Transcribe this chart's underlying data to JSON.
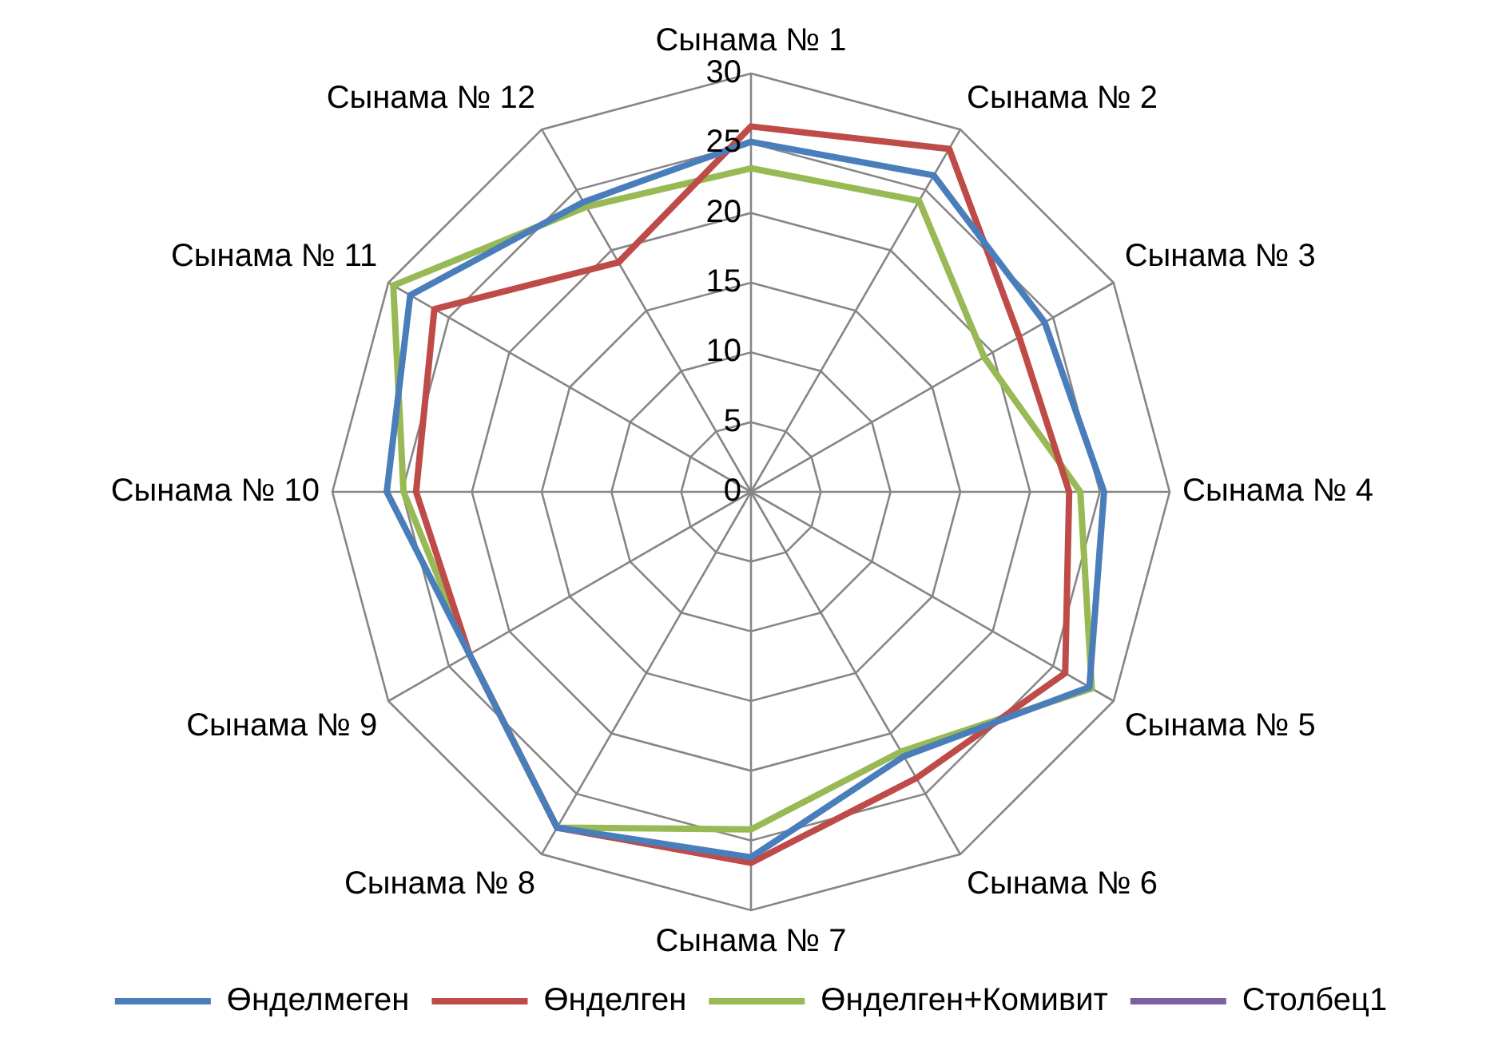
{
  "chart_data": {
    "type": "radar",
    "categories": [
      "Сынама № 1",
      "Сынама № 2",
      "Сынама № 3",
      "Сынама № 4",
      "Сынама № 5",
      "Сынама № 6",
      "Сынама № 7",
      "Сынама № 8",
      "Сынама № 9",
      "Сынама № 10",
      "Сынама № 11",
      "Сынама № 12"
    ],
    "series": [
      {
        "name": "Өнделмеген",
        "color": "#4a7ebb",
        "values": [
          25.1,
          26.2,
          24.3,
          25.3,
          28.0,
          21.9,
          26.2,
          27.8,
          23.3,
          26.1,
          28.2,
          24.0
        ]
      },
      {
        "name": "Өнделген",
        "color": "#be4b48",
        "values": [
          26.2,
          28.4,
          22.2,
          22.8,
          26.0,
          23.7,
          26.6,
          27.8,
          23.3,
          24.0,
          26.2,
          19.0
        ]
      },
      {
        "name": "Өнделген+Комивит",
        "color": "#98b954",
        "values": [
          23.2,
          24.1,
          19.3,
          23.6,
          28.2,
          21.5,
          24.2,
          27.8,
          23.3,
          24.9,
          29.6,
          23.6
        ]
      },
      {
        "name": "Столбец1",
        "color": "#7d60a0",
        "values": [
          null,
          null,
          null,
          null,
          null,
          null,
          null,
          null,
          null,
          null,
          null,
          null
        ]
      }
    ],
    "ylim": [
      0,
      30
    ],
    "yticks": [
      0,
      5,
      10,
      15,
      20,
      25,
      30
    ],
    "grid": true,
    "legend": "bottom",
    "marker": "none",
    "line_style": "solid"
  }
}
